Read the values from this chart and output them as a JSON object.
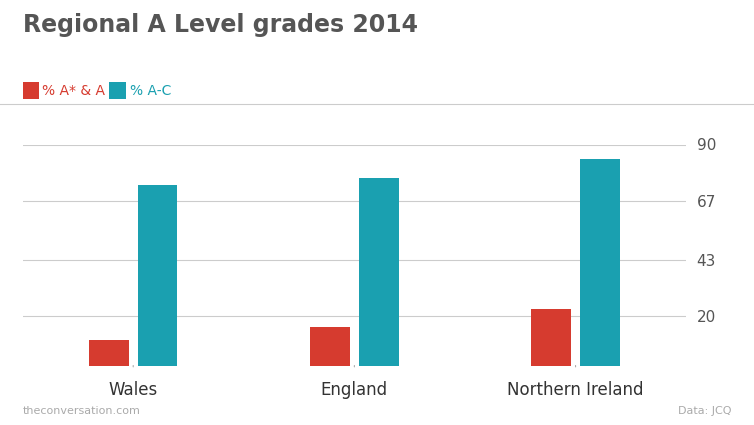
{
  "title": "Regional A Level grades 2014",
  "legend_labels": [
    "% A* & A",
    "% A-C"
  ],
  "legend_colors": [
    "#d63b2f",
    "#1aa0b0"
  ],
  "categories": [
    "Wales",
    "England",
    "Northern Ireland"
  ],
  "a_star_a": [
    10.5,
    15.5,
    23.0
  ],
  "a_to_c": [
    73.5,
    76.5,
    84.0
  ],
  "bar_color_red": "#d63b2f",
  "bar_color_teal": "#1aa0b0",
  "yticks": [
    20,
    43,
    67,
    90
  ],
  "ymin": 0,
  "ymax": 90,
  "footnote_left": "theconversation.com",
  "footnote_right": "Data: JCQ",
  "background_color": "#ffffff",
  "title_fontsize": 17,
  "legend_fontsize": 10,
  "bar_width": 0.18,
  "bar_gap": 0.04
}
